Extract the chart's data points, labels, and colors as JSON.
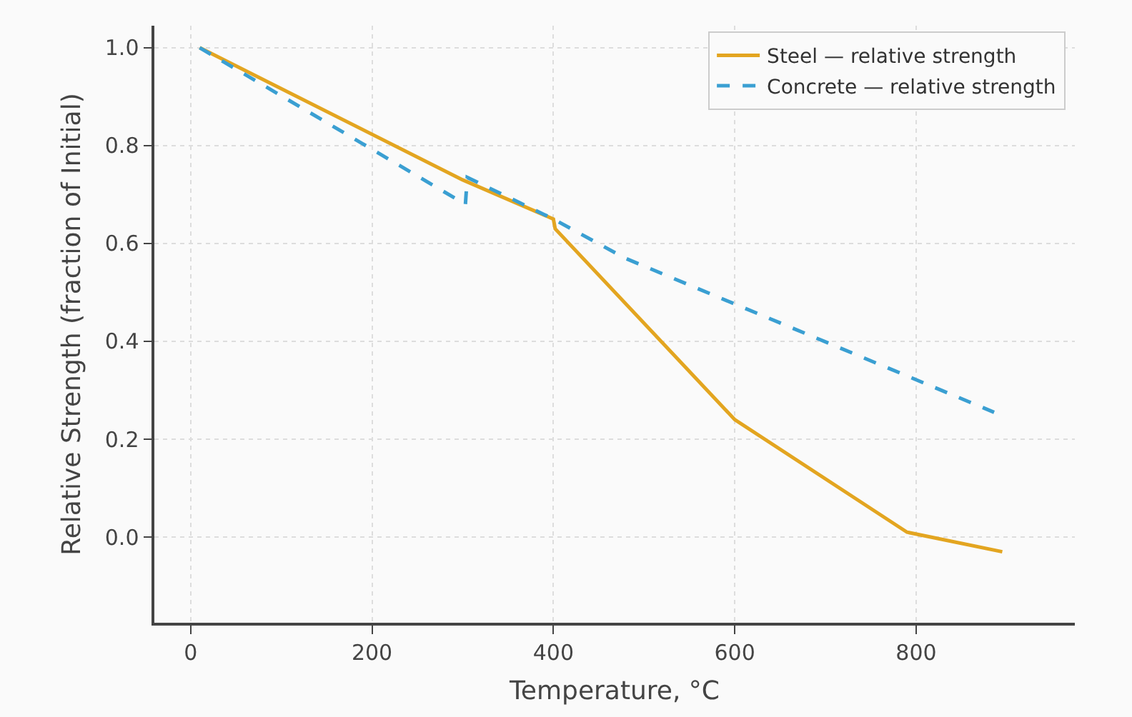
{
  "chart_data": {
    "type": "line",
    "xlabel": "Temperature, °C",
    "ylabel": "Relative Strength (fraction of Initial)",
    "xlim": [
      -40,
      975
    ],
    "ylim": [
      -0.175,
      1.045
    ],
    "xticks": [
      0,
      200,
      400,
      600,
      800
    ],
    "yticks": [
      {
        "value": 0,
        "label": "0.0"
      },
      {
        "value": 0.2,
        "label": "0.2"
      },
      {
        "value": 0.4,
        "label": "0.4"
      },
      {
        "value": 0.6,
        "label": "0.6"
      },
      {
        "value": 0.8,
        "label": "0.8"
      },
      {
        "value": 1,
        "label": "1.0"
      }
    ],
    "grid": true,
    "legend": "top right",
    "marker": "none",
    "series": [
      {
        "name": "Steel — relative strength",
        "color": "#e3a520",
        "line_style": "solid",
        "x": [
          10,
          300,
          400,
          402,
          600,
          790,
          895
        ],
        "values": [
          1.0,
          0.73,
          0.65,
          0.63,
          0.24,
          0.01,
          -0.03
        ]
      },
      {
        "name": "Concrete — relative strength",
        "color": "#3a9fd2",
        "line_style": "dashed",
        "x": [
          10,
          303,
          305,
          400,
          479,
          886
        ],
        "values": [
          1.0,
          0.68,
          0.735,
          0.65,
          0.57,
          0.255
        ]
      }
    ]
  }
}
